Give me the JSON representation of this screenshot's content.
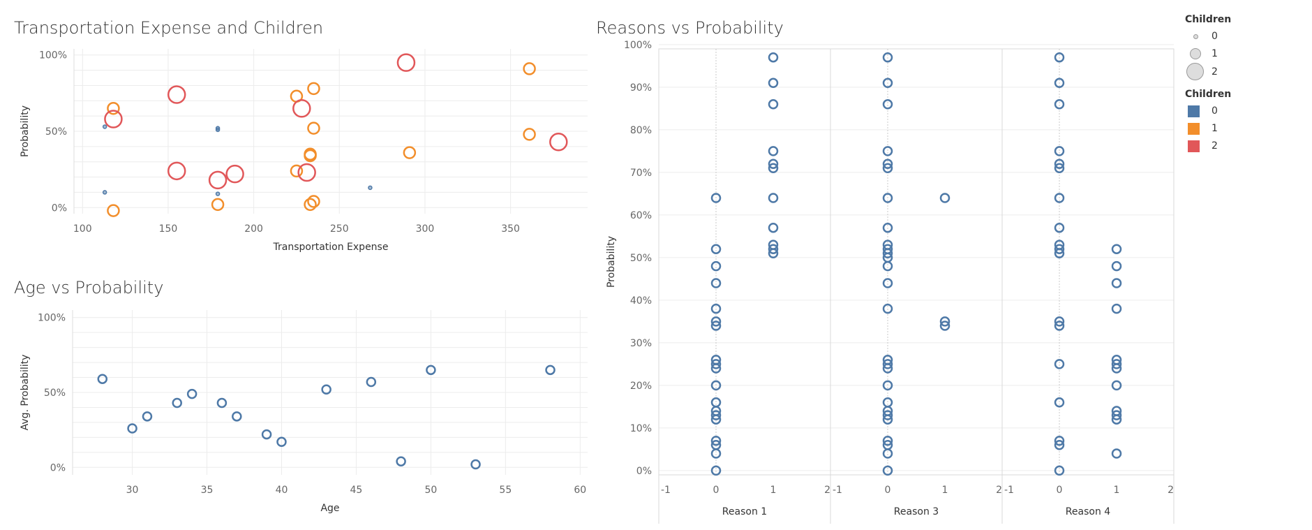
{
  "colors": {
    "children_0": "#4e79a7",
    "children_1": "#f28e2b",
    "children_2": "#e15759",
    "grid": "#ececec"
  },
  "legend": {
    "size_title": "Children",
    "size_items": [
      "0",
      "1",
      "2"
    ],
    "color_title": "Children",
    "color_items": [
      {
        "label": "0",
        "color": "#4e79a7"
      },
      {
        "label": "1",
        "color": "#f28e2b"
      },
      {
        "label": "2",
        "color": "#e15759"
      }
    ]
  },
  "chart_data": [
    {
      "type": "scatter",
      "title": "Transportation Expense and Children",
      "xlabel": "Transportation Expense",
      "ylabel": "Probability",
      "xlim": [
        95,
        395
      ],
      "ylim": [
        -0.04,
        1.04
      ],
      "xticks": [
        "100",
        "150",
        "200",
        "250",
        "300",
        "350"
      ],
      "yticks": [
        "0%",
        "50%",
        "100%"
      ],
      "size_by": "Children",
      "color_by": "Children",
      "series": [
        {
          "name": "0",
          "points": [
            [
              113,
              0.53
            ],
            [
              113,
              0.1
            ],
            [
              179,
              0.52
            ],
            [
              179,
              0.51
            ],
            [
              179,
              0.09
            ],
            [
              268,
              0.13
            ]
          ]
        },
        {
          "name": "1",
          "points": [
            [
              118,
              0.65
            ],
            [
              118,
              -0.02
            ],
            [
              179,
              0.02
            ],
            [
              225,
              0.73
            ],
            [
              225,
              0.24
            ],
            [
              235,
              0.78
            ],
            [
              235,
              0.52
            ],
            [
              233,
              0.35
            ],
            [
              233,
              0.34
            ],
            [
              233,
              0.02
            ],
            [
              235,
              0.04
            ],
            [
              291,
              0.36
            ],
            [
              361,
              0.91
            ],
            [
              361,
              0.48
            ]
          ]
        },
        {
          "name": "2",
          "points": [
            [
              118,
              0.58
            ],
            [
              155,
              0.74
            ],
            [
              155,
              0.24
            ],
            [
              179,
              0.18
            ],
            [
              189,
              0.22
            ],
            [
              228,
              0.65
            ],
            [
              231,
              0.23
            ],
            [
              289,
              0.95
            ],
            [
              378,
              0.43
            ]
          ]
        }
      ]
    },
    {
      "type": "scatter",
      "title": "Age vs Probability",
      "xlabel": "Age",
      "ylabel": "Avg. Probability",
      "xlim": [
        26,
        60.5
      ],
      "ylim": [
        -0.05,
        1.05
      ],
      "xticks": [
        "30",
        "35",
        "40",
        "45",
        "50",
        "55",
        "60"
      ],
      "yticks": [
        "0%",
        "50%",
        "100%"
      ],
      "series": [
        {
          "name": "",
          "points": [
            [
              28,
              0.59
            ],
            [
              30,
              0.26
            ],
            [
              31,
              0.34
            ],
            [
              33,
              0.43
            ],
            [
              34,
              0.49
            ],
            [
              36,
              0.43
            ],
            [
              37,
              0.34
            ],
            [
              39,
              0.22
            ],
            [
              40,
              0.17
            ],
            [
              43,
              0.52
            ],
            [
              46,
              0.57
            ],
            [
              48,
              0.04
            ],
            [
              50,
              0.65
            ],
            [
              53,
              0.02
            ],
            [
              58,
              0.65
            ]
          ]
        }
      ]
    },
    {
      "type": "scatter",
      "title": "Reasons vs Probability",
      "ylabel": "Probability",
      "ylim": [
        -0.01,
        0.99
      ],
      "yticks": [
        "0%",
        "10%",
        "20%",
        "30%",
        "40%",
        "50%",
        "60%",
        "70%",
        "80%",
        "90%",
        "100%"
      ],
      "panel_xlim": [
        -1,
        2
      ],
      "panel_xticks": [
        "-1",
        "0",
        "1",
        "2"
      ],
      "panels": [
        {
          "label": "Reason 1",
          "points": [
            [
              0,
              0.64
            ],
            [
              0,
              0.52
            ],
            [
              0,
              0.48
            ],
            [
              0,
              0.44
            ],
            [
              0,
              0.38
            ],
            [
              0,
              0.35
            ],
            [
              0,
              0.34
            ],
            [
              0,
              0.26
            ],
            [
              0,
              0.25
            ],
            [
              0,
              0.24
            ],
            [
              0,
              0.2
            ],
            [
              0,
              0.16
            ],
            [
              0,
              0.14
            ],
            [
              0,
              0.13
            ],
            [
              0,
              0.12
            ],
            [
              0,
              0.07
            ],
            [
              0,
              0.06
            ],
            [
              0,
              0.04
            ],
            [
              0,
              0.0
            ],
            [
              1,
              0.97
            ],
            [
              1,
              0.91
            ],
            [
              1,
              0.86
            ],
            [
              1,
              0.75
            ],
            [
              1,
              0.72
            ],
            [
              1,
              0.71
            ],
            [
              1,
              0.64
            ],
            [
              1,
              0.57
            ],
            [
              1,
              0.53
            ],
            [
              1,
              0.52
            ],
            [
              1,
              0.51
            ]
          ]
        },
        {
          "label": "Reason 3",
          "points": [
            [
              0,
              0.97
            ],
            [
              0,
              0.91
            ],
            [
              0,
              0.86
            ],
            [
              0,
              0.75
            ],
            [
              0,
              0.72
            ],
            [
              0,
              0.71
            ],
            [
              0,
              0.64
            ],
            [
              0,
              0.57
            ],
            [
              0,
              0.53
            ],
            [
              0,
              0.52
            ],
            [
              0,
              0.51
            ],
            [
              0,
              0.5
            ],
            [
              0,
              0.48
            ],
            [
              0,
              0.44
            ],
            [
              0,
              0.38
            ],
            [
              0,
              0.26
            ],
            [
              0,
              0.25
            ],
            [
              0,
              0.24
            ],
            [
              0,
              0.2
            ],
            [
              0,
              0.16
            ],
            [
              0,
              0.14
            ],
            [
              0,
              0.13
            ],
            [
              0,
              0.12
            ],
            [
              0,
              0.07
            ],
            [
              0,
              0.06
            ],
            [
              0,
              0.04
            ],
            [
              0,
              0.0
            ],
            [
              1,
              0.64
            ],
            [
              1,
              0.35
            ],
            [
              1,
              0.34
            ]
          ]
        },
        {
          "label": "Reason 4",
          "points": [
            [
              0,
              0.97
            ],
            [
              0,
              0.91
            ],
            [
              0,
              0.86
            ],
            [
              0,
              0.75
            ],
            [
              0,
              0.72
            ],
            [
              0,
              0.71
            ],
            [
              0,
              0.64
            ],
            [
              0,
              0.57
            ],
            [
              0,
              0.53
            ],
            [
              0,
              0.52
            ],
            [
              0,
              0.51
            ],
            [
              0,
              0.35
            ],
            [
              0,
              0.34
            ],
            [
              0,
              0.25
            ],
            [
              0,
              0.16
            ],
            [
              0,
              0.07
            ],
            [
              0,
              0.06
            ],
            [
              0,
              0.0
            ],
            [
              1,
              0.52
            ],
            [
              1,
              0.48
            ],
            [
              1,
              0.44
            ],
            [
              1,
              0.38
            ],
            [
              1,
              0.26
            ],
            [
              1,
              0.25
            ],
            [
              1,
              0.24
            ],
            [
              1,
              0.2
            ],
            [
              1,
              0.14
            ],
            [
              1,
              0.13
            ],
            [
              1,
              0.12
            ],
            [
              1,
              0.04
            ]
          ]
        }
      ]
    }
  ]
}
